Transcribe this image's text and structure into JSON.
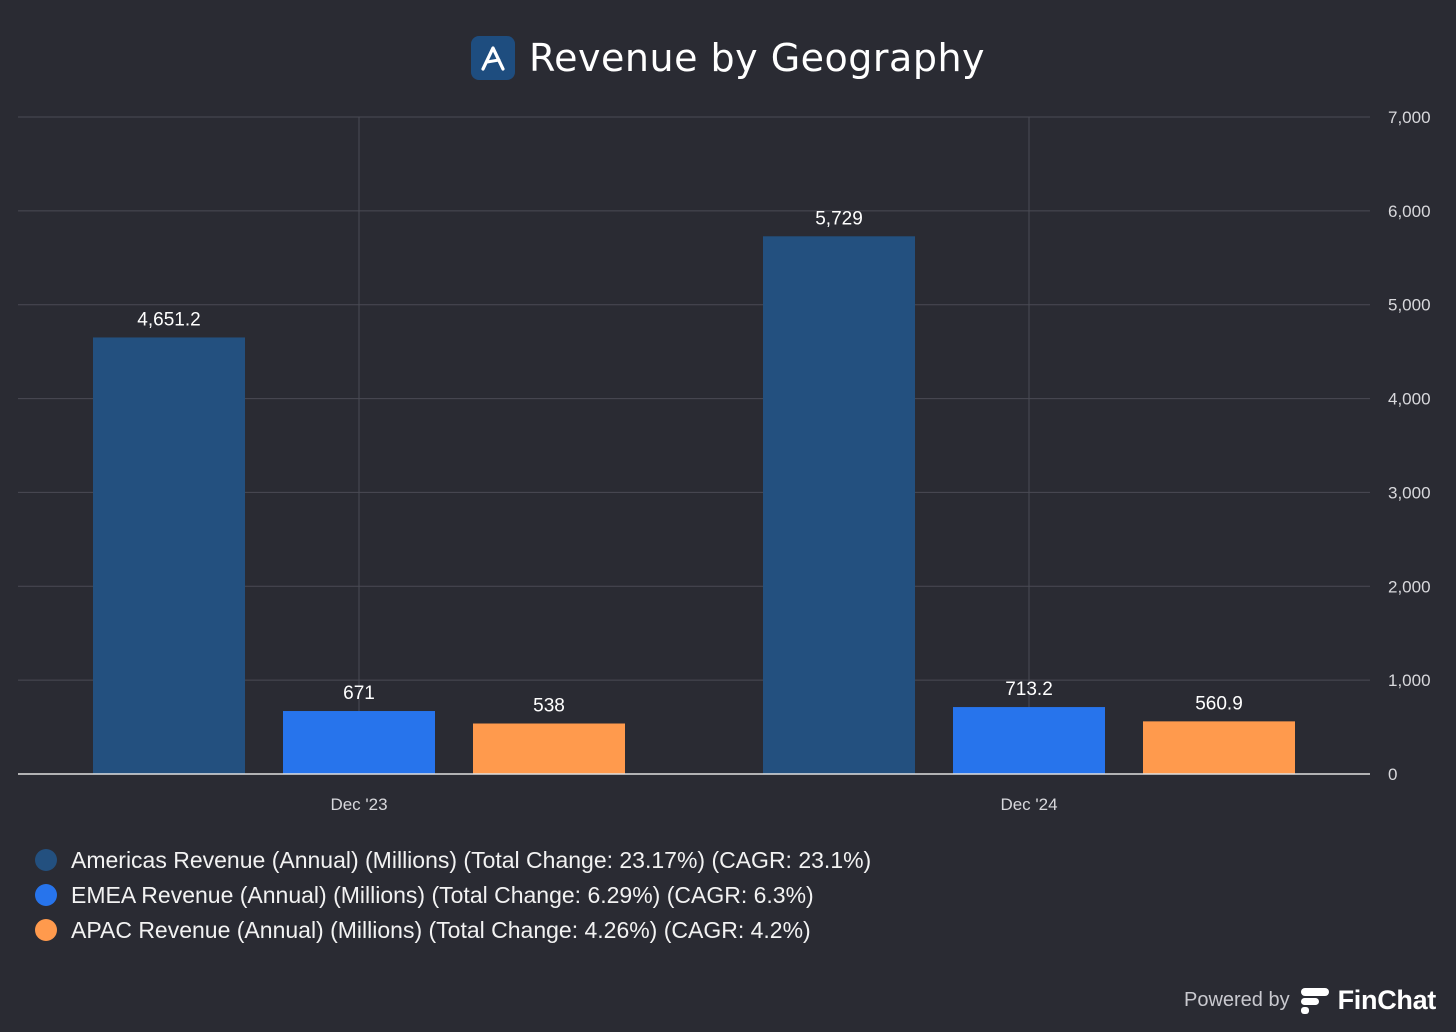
{
  "title": "Revenue by Geography",
  "footer": {
    "powered_by": "Powered by",
    "brand": "FinChat"
  },
  "colors": {
    "background": "#2a2b33",
    "americas": "#23507f",
    "emea": "#2774ec",
    "apac": "#ff9a4d",
    "grid": "#4a4b55",
    "axis": "#e0e0e0",
    "tick_text": "#d8d8dc"
  },
  "icons": {
    "title_logo": "stylized-a-icon",
    "brand_logo": "finchat-logo-icon"
  },
  "legend": [
    {
      "label": "Americas Revenue (Annual) (Millions) (Total Change: 23.17%) (CAGR: 23.1%)",
      "color": "#23507f"
    },
    {
      "label": "EMEA Revenue (Annual) (Millions) (Total Change: 6.29%) (CAGR: 6.3%)",
      "color": "#2774ec"
    },
    {
      "label": "APAC Revenue (Annual) (Millions) (Total Change: 4.26%) (CAGR: 4.2%)",
      "color": "#ff9a4d"
    }
  ],
  "chart_data": {
    "type": "bar",
    "title": "Revenue by Geography",
    "categories": [
      "Dec '23",
      "Dec '24"
    ],
    "series": [
      {
        "name": "Americas Revenue (Annual) (Millions) (Total Change: 23.17%) (CAGR: 23.1%)",
        "values": [
          4651.2,
          5729
        ],
        "labels": [
          "4,651.2",
          "5,729"
        ],
        "color": "#23507f"
      },
      {
        "name": "EMEA Revenue (Annual) (Millions) (Total Change: 6.29%) (CAGR: 6.3%)",
        "values": [
          671,
          713.2
        ],
        "labels": [
          "671",
          "713.2"
        ],
        "color": "#2774ec"
      },
      {
        "name": "APAC Revenue (Annual) (Millions) (Total Change: 4.26%) (CAGR: 4.2%)",
        "values": [
          538,
          560.9
        ],
        "labels": [
          "538",
          "560.9"
        ],
        "color": "#ff9a4d"
      }
    ],
    "ylim": [
      0,
      7000
    ],
    "yticks": [
      0,
      1000,
      2000,
      3000,
      4000,
      5000,
      6000,
      7000
    ],
    "ytick_labels": [
      "0",
      "1,000",
      "2,000",
      "3,000",
      "4,000",
      "5,000",
      "6,000",
      "7,000"
    ],
    "y_axis_side": "right",
    "grid": true,
    "legend_position": "bottom-left",
    "xlabel": "",
    "ylabel": ""
  }
}
